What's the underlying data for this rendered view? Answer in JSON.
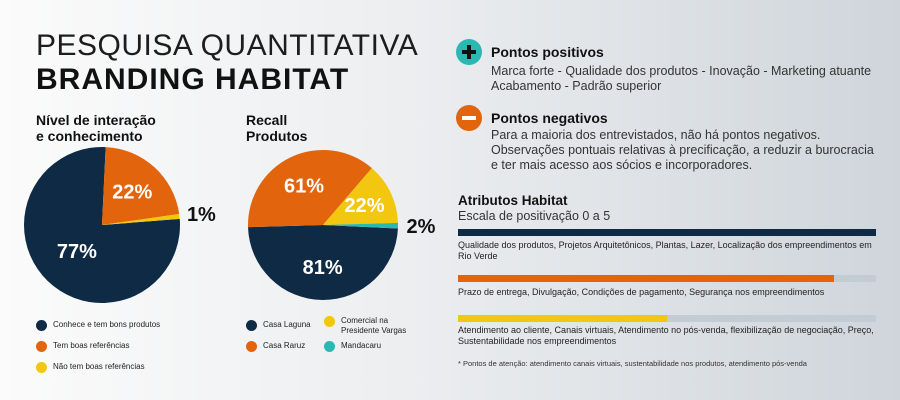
{
  "header": {
    "line1": "PESQUISA QUANTITATIVA",
    "line2": "BRANDING HABITAT"
  },
  "chart_data": [
    {
      "type": "pie",
      "title": "Nível de interação e conhecimento",
      "title_lines": [
        "Nível de interação",
        "e conhecimento"
      ],
      "slices": [
        {
          "label": "Conhece e tem bons produtos",
          "value": 77,
          "display": "77%",
          "color": "#0f2a44"
        },
        {
          "label": "Tem boas referências",
          "value": 22,
          "display": "22%",
          "color": "#e2640d"
        },
        {
          "label": "Não tem boas referências",
          "value": 1,
          "display": "1%",
          "color": "#f3c60f"
        }
      ]
    },
    {
      "type": "pie",
      "title": "Recall Produtos",
      "title_lines": [
        "Recall",
        "Produtos"
      ],
      "slices": [
        {
          "label": "Casa Laguna",
          "value": 81,
          "display": "81%",
          "color": "#0f2a44"
        },
        {
          "label": "Casa Raruz",
          "value": 61,
          "display": "61%",
          "color": "#e2640d"
        },
        {
          "label": "Comercial na Presidente Vargas",
          "value": 22,
          "display": "22%",
          "color": "#f3c60f"
        },
        {
          "label": "Mandacaru",
          "value": 2,
          "display": "2%",
          "color": "#2bb8b3"
        }
      ]
    },
    {
      "type": "bar",
      "title": "Atributos Habitat",
      "subtitle": "Escala de positivação 0 a 5",
      "bars": [
        {
          "label": "Qualidade dos produtos, Projetos Arquitetônicos, Plantas, Lazer, Localização dos empreendimentos em Rio Verde",
          "value": 5,
          "color": "#0f2a44"
        },
        {
          "label": "Prazo de entrega, Divulgação, Condições de pagamento, Segurança nos empreendimentos",
          "value": 4.5,
          "color": "#e2640d"
        },
        {
          "label": "Atendimento ao cliente, Canais virtuais, Atendimento no pós-venda, flexibilização de negociação, Preço, Sustentabilidade nos empreendimentos",
          "value": 2.5,
          "color": "#f3c60f"
        }
      ],
      "max": 5,
      "note": "* Pontos de atenção: atendimento canais virtuais, sustentabilidade nos produtos, atendimento pós-venda"
    }
  ],
  "positives": {
    "title": "Pontos positivos",
    "icon": "plus-icon",
    "lines": [
      "Marca forte - Qualidade dos produtos - Inovação - Marketing atuante",
      "Acabamento - Padrão superior"
    ]
  },
  "negatives": {
    "title": "Pontos negativos",
    "icon": "minus-icon",
    "lines": [
      "Para a maioria dos entrevistados, não há pontos negativos.",
      "Observações pontuais relativas à precificação, a reduzir a burocracia",
      "e ter mais acesso aos sócios e incorporadores."
    ]
  },
  "colors": {
    "navy": "#0f2a44",
    "orange": "#e2640d",
    "yellow": "#f3c60f",
    "teal": "#2bb8b3"
  }
}
